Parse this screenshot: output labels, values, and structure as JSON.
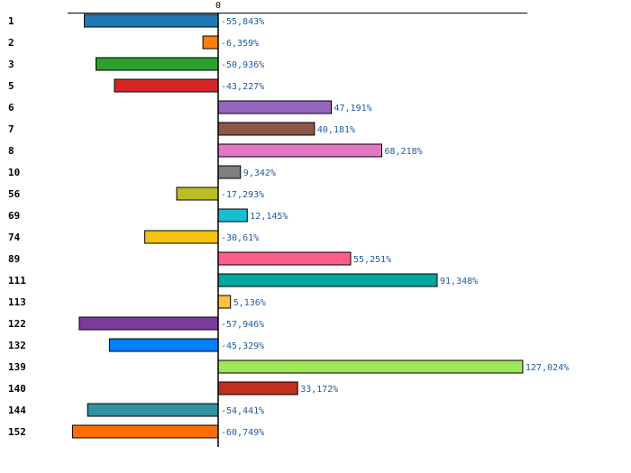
{
  "chart_data": {
    "type": "bar",
    "orientation": "horizontal",
    "title": "",
    "xlabel": "",
    "ylabel": "",
    "xlim": [
      -70,
      130
    ],
    "zero_tick_label": "0",
    "grid": false,
    "legend": "none",
    "categories": [
      "1",
      "2",
      "3",
      "5",
      "6",
      "7",
      "8",
      "10",
      "56",
      "69",
      "74",
      "89",
      "111",
      "113",
      "122",
      "132",
      "139",
      "140",
      "144",
      "152"
    ],
    "values": [
      -55.843,
      -6.359,
      -50.936,
      -43.227,
      47.191,
      40.181,
      68.218,
      9.342,
      -17.293,
      12.145,
      -30.61,
      55.251,
      91.348,
      5.136,
      -57.946,
      -45.329,
      127.024,
      33.172,
      -54.441,
      -60.749
    ],
    "value_labels": [
      "-55,843%",
      "-6,359%",
      "-50,936%",
      "-43,227%",
      "47,191%",
      "40,181%",
      "68,218%",
      "9,342%",
      "-17,293%",
      "12,145%",
      "-30,61%",
      "55,251%",
      "91,348%",
      "5,136%",
      "-57,946%",
      "-45,329%",
      "127,024%",
      "33,172%",
      "-54,441%",
      "-60,749%"
    ],
    "colors": [
      "#1f77b4",
      "#ff7f0e",
      "#2ca02c",
      "#d62728",
      "#9467bd",
      "#8c564b",
      "#e377c2",
      "#7f7f7f",
      "#bcbd22",
      "#17becf",
      "#f2c40f",
      "#ff5c8a",
      "#00a7a0",
      "#ffbf3f",
      "#7a3c9a",
      "#007fff",
      "#9be858",
      "#c0301c",
      "#3192a1",
      "#ff6d00"
    ]
  }
}
